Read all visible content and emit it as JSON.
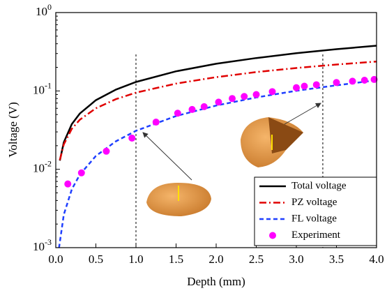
{
  "chart_data": {
    "type": "line",
    "x_label": "Depth (mm)",
    "y_label": "Voltage (V)",
    "xlim": [
      0,
      4
    ],
    "ylim": [
      0.001,
      1
    ],
    "yscale": "log",
    "xticks": [
      {
        "value": 0,
        "label": "0.0"
      },
      0.5,
      {
        "value": 1,
        "label": "1.0"
      },
      1.5,
      {
        "value": 2,
        "label": "2.0"
      },
      2.5,
      {
        "value": 3,
        "label": "3.0"
      },
      3.5,
      {
        "value": 4,
        "label": "4.0"
      }
    ],
    "yticks": [
      {
        "value": 0.001,
        "label": "10",
        "exponent": "-3"
      },
      {
        "value": 0.01,
        "label": "10",
        "exponent": "-2"
      },
      {
        "value": 0.1,
        "label": "10",
        "exponent": "-1"
      },
      {
        "value": 1,
        "label": "10",
        "exponent": "0"
      }
    ],
    "legend": "bottom-right",
    "reference_lines": [
      1,
      3.33
    ],
    "series": [
      {
        "name": "Total voltage",
        "color": "#000000",
        "style": "solid",
        "x": [
          0.05,
          0.1,
          0.2,
          0.3,
          0.5,
          0.75,
          1,
          1.5,
          2,
          2.5,
          3,
          3.5,
          4
        ],
        "values": [
          0.0129,
          0.0221,
          0.0377,
          0.0515,
          0.0762,
          0.104,
          0.13,
          0.178,
          0.222,
          0.263,
          0.303,
          0.341,
          0.378
        ]
      },
      {
        "name": "PZ voltage",
        "color": "#e00000",
        "style": "dashdot",
        "x": [
          0.05,
          0.1,
          0.2,
          0.3,
          0.5,
          0.75,
          1,
          1.5,
          2,
          2.5,
          3,
          3.5,
          4
        ],
        "values": [
          0.0131,
          0.0208,
          0.0329,
          0.0429,
          0.0601,
          0.0786,
          0.095,
          0.124,
          0.15,
          0.174,
          0.196,
          0.217,
          0.237
        ]
      },
      {
        "name": "FL voltage",
        "color": "#1f3fff",
        "style": "dash",
        "x": [
          0.04,
          0.1,
          0.2,
          0.3,
          0.5,
          0.75,
          1,
          1.5,
          2,
          2.5,
          3,
          3.5,
          4
        ],
        "values": [
          0.00099,
          0.00264,
          0.00556,
          0.00856,
          0.0148,
          0.0228,
          0.031,
          0.0478,
          0.0651,
          0.0826,
          0.1005,
          0.118,
          0.137
        ]
      },
      {
        "name": "Experiment",
        "color": "#ff00ff",
        "style": "marker",
        "x": [
          0.15,
          0.32,
          0.63,
          0.95,
          1.25,
          1.52,
          1.7,
          1.85,
          2.03,
          2.2,
          2.35,
          2.5,
          2.7,
          3.0,
          3.1,
          3.25,
          3.5,
          3.7,
          3.85,
          3.97
        ],
        "values": [
          0.0065,
          0.009,
          0.017,
          0.025,
          0.04,
          0.052,
          0.058,
          0.063,
          0.072,
          0.08,
          0.085,
          0.09,
          0.098,
          0.11,
          0.115,
          0.12,
          0.128,
          0.133,
          0.137,
          0.14
        ]
      }
    ]
  }
}
